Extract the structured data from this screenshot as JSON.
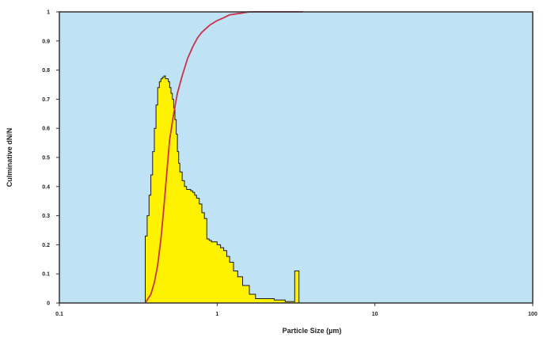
{
  "chart_data": {
    "type": "area",
    "title": "",
    "xlabel": "Particle Size (µm)",
    "ylabel": "Culminative dN/N",
    "x_scale": "log",
    "xlim": [
      0.1,
      100
    ],
    "ylim": [
      0,
      1
    ],
    "x_ticks": [
      "0.1",
      "1",
      "10",
      "100"
    ],
    "y_ticks": [
      "0",
      "0.1",
      "0.2",
      "0.3",
      "0.4",
      "0.5",
      "0.6",
      "0.7",
      "0.8",
      "0.9",
      "1"
    ],
    "grid": false,
    "legend": "none",
    "colors": {
      "plot_background": "#bfe3f5",
      "histogram_fill": "#fff200",
      "histogram_outline": "#1a1a1a",
      "cumulative_line": "#c8324a"
    },
    "series": [
      {
        "kind": "histogram",
        "x": [
          0.35,
          0.36,
          0.37,
          0.38,
          0.39,
          0.4,
          0.41,
          0.42,
          0.43,
          0.44,
          0.45,
          0.46,
          0.47,
          0.48,
          0.49,
          0.5,
          0.51,
          0.52,
          0.53,
          0.54,
          0.55,
          0.56,
          0.57,
          0.58,
          0.6,
          0.62,
          0.64,
          0.66,
          0.68,
          0.7,
          0.72,
          0.74,
          0.77,
          0.8,
          0.83,
          0.86,
          0.89,
          0.92,
          0.95,
          1.0,
          1.05,
          1.1,
          1.15,
          1.2,
          1.27,
          1.35,
          1.45,
          1.6,
          1.75,
          2.3,
          2.7,
          3.0,
          3.1,
          3.3
        ],
        "y": [
          0.23,
          0.3,
          0.37,
          0.44,
          0.52,
          0.6,
          0.68,
          0.74,
          0.76,
          0.77,
          0.775,
          0.78,
          0.77,
          0.77,
          0.76,
          0.74,
          0.72,
          0.7,
          0.67,
          0.63,
          0.58,
          0.52,
          0.48,
          0.45,
          0.42,
          0.4,
          0.39,
          0.39,
          0.385,
          0.38,
          0.37,
          0.36,
          0.34,
          0.31,
          0.29,
          0.22,
          0.215,
          0.21,
          0.21,
          0.2,
          0.19,
          0.18,
          0.16,
          0.14,
          0.11,
          0.09,
          0.06,
          0.03,
          0.015,
          0.01,
          0.005,
          0.005,
          0.11,
          0.0
        ]
      },
      {
        "kind": "line",
        "x": [
          0.35,
          0.38,
          0.4,
          0.42,
          0.44,
          0.46,
          0.48,
          0.5,
          0.53,
          0.56,
          0.6,
          0.65,
          0.7,
          0.75,
          0.8,
          0.9,
          1.0,
          1.1,
          1.2,
          1.4,
          1.6,
          2.0,
          2.5,
          3.0,
          3.5
        ],
        "y": [
          0.0,
          0.03,
          0.07,
          0.13,
          0.22,
          0.33,
          0.45,
          0.56,
          0.65,
          0.72,
          0.78,
          0.84,
          0.88,
          0.91,
          0.93,
          0.955,
          0.97,
          0.98,
          0.99,
          0.995,
          1.0,
          1.0,
          1.0,
          1.0,
          1.0
        ]
      }
    ]
  }
}
